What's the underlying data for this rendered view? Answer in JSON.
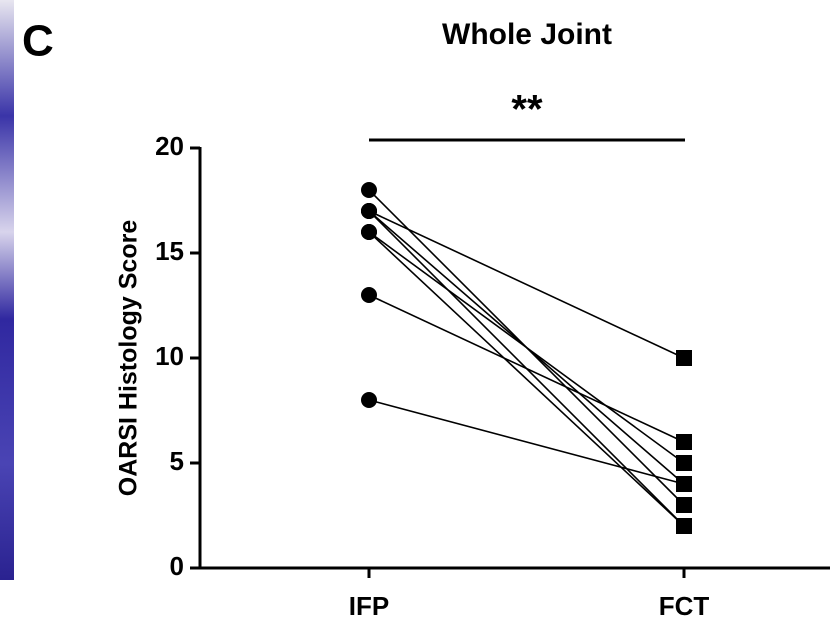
{
  "panel_label": "C",
  "chart_data": {
    "type": "line",
    "title": "Whole Joint",
    "annotation": "**",
    "ylabel": "OARSI Histology Score",
    "categories": [
      "IFP",
      "FCT"
    ],
    "ylim": [
      0,
      20
    ],
    "yticks": [
      0,
      5,
      10,
      15,
      20
    ],
    "series": [
      {
        "color": "#000000",
        "values": [
          18,
          3
        ]
      },
      {
        "color": "#000000",
        "values": [
          17,
          10
        ]
      },
      {
        "color": "#000000",
        "values": [
          17,
          2
        ]
      },
      {
        "color": "#000000",
        "values": [
          17,
          4
        ]
      },
      {
        "color": "#000000",
        "values": [
          16,
          2
        ]
      },
      {
        "color": "#000000",
        "values": [
          16,
          5
        ]
      },
      {
        "color": "#000000",
        "values": [
          13,
          6
        ]
      },
      {
        "color": "#000000",
        "values": [
          8,
          4
        ]
      }
    ]
  }
}
